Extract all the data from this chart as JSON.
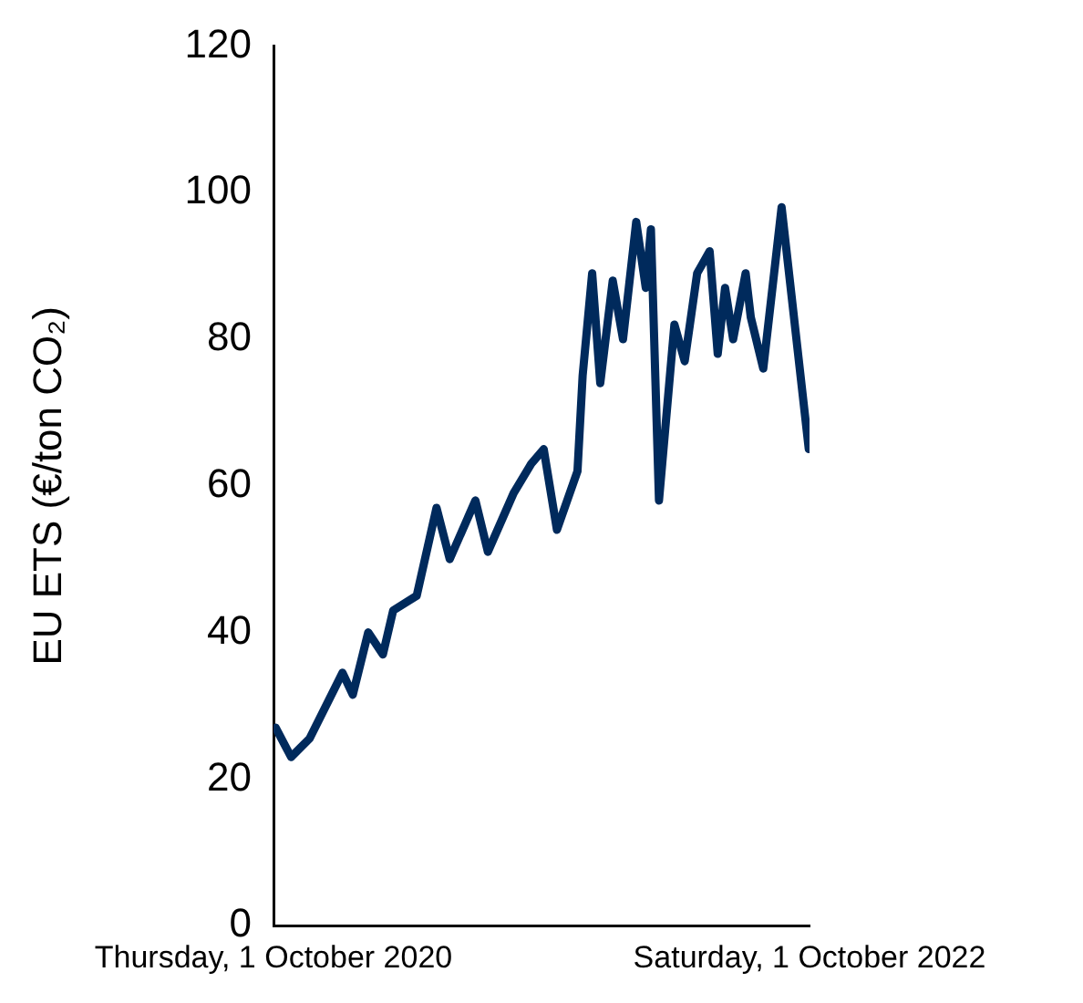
{
  "chart_data": {
    "type": "line",
    "ylabel": "EU ETS (€/ton CO₂)",
    "x": [
      "2020-10-04",
      "2020-10-25",
      "2020-11-19",
      "2021-01-03",
      "2021-01-17",
      "2021-02-07",
      "2021-02-27",
      "2021-03-13",
      "2021-04-14",
      "2021-05-11",
      "2021-05-29",
      "2021-07-03",
      "2021-07-20",
      "2021-08-24",
      "2021-09-17",
      "2021-10-04",
      "2021-10-22",
      "2021-11-19",
      "2021-11-26",
      "2021-12-09",
      "2021-12-20",
      "2022-01-06",
      "2022-01-20",
      "2022-02-07",
      "2022-02-20",
      "2022-02-27",
      "2022-03-10",
      "2022-03-31",
      "2022-04-14",
      "2022-05-01",
      "2022-05-18",
      "2022-05-29",
      "2022-06-08",
      "2022-06-19",
      "2022-07-06",
      "2022-07-13",
      "2022-07-30",
      "2022-08-24",
      "2022-09-30"
    ],
    "series": [
      {
        "color": "#002a5c",
        "values": [
          27,
          23,
          25.5,
          34.5,
          31.5,
          40,
          37,
          43,
          45,
          57,
          50,
          58,
          51,
          59,
          63,
          65,
          54,
          62,
          75,
          89,
          74,
          88,
          80,
          96,
          87,
          95,
          58,
          82,
          77,
          89,
          92,
          78,
          87,
          80,
          89,
          83,
          76,
          98,
          65
        ]
      }
    ],
    "xlim": [
      "2020-10-01",
      "2022-10-01"
    ],
    "xticks": [
      {
        "value": "2020-10-01",
        "label": "Thursday, 1 October 2020"
      },
      {
        "value": "2022-10-01",
        "label": "Saturday, 1 October 2022"
      }
    ],
    "ylim": [
      0,
      120
    ],
    "yticks": [
      0,
      20,
      40,
      60,
      80,
      100,
      120
    ],
    "grid": false,
    "legend": false,
    "marker": "none",
    "line_style": "solid"
  }
}
